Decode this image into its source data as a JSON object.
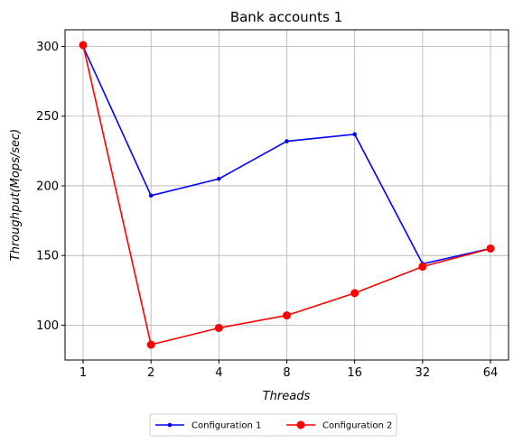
{
  "chart_data": {
    "type": "line",
    "title": "Bank accounts 1",
    "xlabel": "Threads",
    "ylabel": "Throughput(Mops/sec)",
    "categories": [
      "1",
      "2",
      "4",
      "8",
      "16",
      "32",
      "64"
    ],
    "ylim": [
      75,
      312
    ],
    "yticks": [
      100,
      150,
      200,
      250,
      300
    ],
    "grid": true,
    "legend_position": "bottom-center",
    "series": [
      {
        "name": "Configuration 1",
        "color": "#0000ff",
        "marker": "small-dot",
        "values": [
          300,
          193,
          205,
          232,
          237,
          144,
          155
        ]
      },
      {
        "name": "Configuration 2",
        "color": "#ff0000",
        "marker": "circle",
        "values": [
          301,
          86,
          98,
          107,
          123,
          142,
          155
        ]
      }
    ]
  }
}
